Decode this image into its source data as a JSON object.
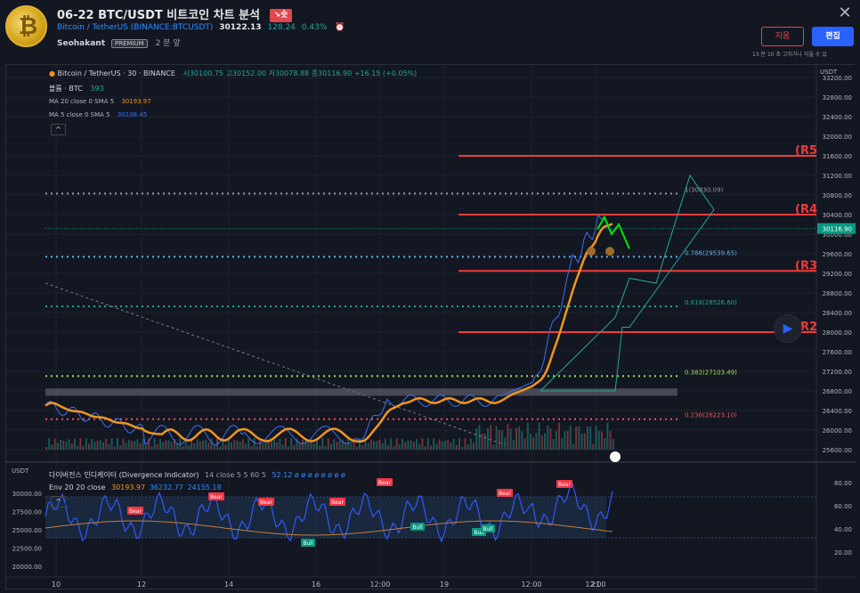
{
  "header": {
    "title": "06-22 BTC/USDT 비트코인 차트 분석",
    "direction_badge": "↘숏",
    "symbol": "Bitcoin / TetherUS (BINANCE:BTCUSDT)",
    "price": "30122.13",
    "change": "128.24",
    "change_pct": "0.43%",
    "author": "Seohakant",
    "author_badge": "PREMIUM",
    "posted_ago": "2 분 앞",
    "delete_label": "지움",
    "edit_label": "편집",
    "edit_note": "13 분 10 초 고치거나 지울 수 있"
  },
  "legend": {
    "main_title": "Bitcoin / TetherUS · 30 · BINANCE",
    "ohlc": "시30100.75 고30152.00 저30078.88 종30116.90 +16.15 (+0.05%)",
    "volume_label": "볼륨 · BTC",
    "volume_value": "393",
    "ma20_label": "MA 20 close 0 SMA 5",
    "ma20_value": "30193.97",
    "ma5_label": "MA 5 close 0 SMA 5",
    "ma5_value": "30108.45",
    "lower_unit": "USDT",
    "div_title": "다이버전스 인디케이터 (Divergence Indicator)",
    "div_params": "14 close 5 5 60 5",
    "div_value": "52.12 ø ø ø ø ø ø ø ø",
    "env_label": "Env 20 20 close",
    "env_values": [
      "30193.97",
      "36232.77",
      "24155.18"
    ]
  },
  "chart_data": {
    "type": "line",
    "price_axis": {
      "unit": "USDT",
      "ticks": [
        33200,
        32800,
        32400,
        32000,
        31600,
        31200,
        30800,
        30400,
        30000,
        29600,
        29200,
        28800,
        28400,
        28000,
        27600,
        27200,
        26800,
        26400,
        26000,
        25600
      ]
    },
    "current_price_label": "30116.90",
    "x_ticks": [
      "10",
      "12",
      "14",
      "16",
      "12:00",
      "19",
      "12:00",
      "21",
      "12:00"
    ],
    "resistance_labels": [
      "(R5",
      "(R4",
      "(R3",
      "(R2"
    ],
    "fib_labels": [
      "1(30830.09)",
      "0.786(29539.65)",
      "0.618(28526.60)",
      "0.382(27103.49)",
      "0.236(26223.10)"
    ],
    "lower_left_ticks": [
      "30000.00",
      "27500.00",
      "25000.00",
      "22500.00",
      "20000.00"
    ],
    "lower_right_ticks": [
      "80.00",
      "60.00",
      "40.00",
      "20.00"
    ],
    "signals": {
      "bear": "Bear",
      "bull": "Bull"
    },
    "colors": {
      "price": "#3d6ff0",
      "ma20": "#f0961e",
      "ma5": "#3d6ff0",
      "resistance": "#f03b3b",
      "fib_gray": "#9598a1",
      "fib_blue": "#5ab4f0",
      "fib_teal": "#26a69a",
      "fib_green": "#9ee44f",
      "fib_red": "#f05050"
    }
  }
}
